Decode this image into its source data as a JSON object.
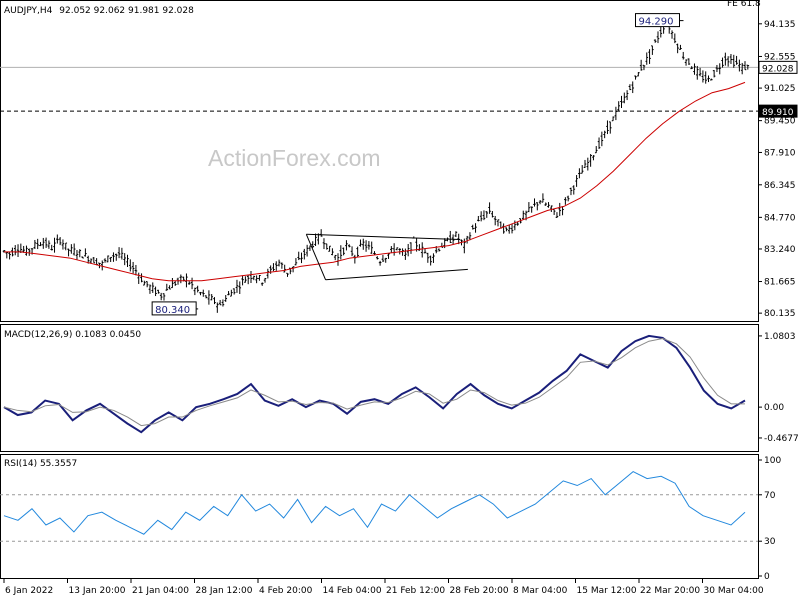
{
  "chart_data": [
    {
      "type": "candlestick",
      "symbol_label": "AUDJPY,H4",
      "ohlc_label": "92.052 92.062 91.981 92.028",
      "watermark": "ActionForex.com",
      "corner_label": "FE 61.8",
      "ylim": [
        79.9,
        94.9
      ],
      "yticks": [
        "94.135",
        "92.555",
        "91.025",
        "89.450",
        "87.910",
        "86.345",
        "84.770",
        "83.240",
        "81.665",
        "80.135"
      ],
      "current_price": "92.028",
      "level_line": "89.910",
      "annotation_high": "94.290",
      "annotation_low": "80.340",
      "price_series": [
        83.2,
        83.0,
        83.3,
        83.1,
        83.4,
        83.6,
        83.3,
        83.7,
        83.2,
        83.1,
        82.9,
        82.7,
        82.5,
        82.9,
        83.0,
        82.6,
        82.2,
        81.6,
        81.3,
        81.0,
        81.4,
        81.7,
        81.8,
        81.3,
        81.0,
        80.8,
        80.5,
        81.0,
        81.4,
        81.8,
        82.0,
        81.7,
        82.2,
        82.6,
        82.1,
        82.5,
        83.0,
        83.5,
        83.9,
        83.2,
        82.8,
        83.4,
        82.9,
        83.5,
        83.2,
        82.7,
        83.0,
        83.3,
        82.9,
        83.6,
        83.2,
        82.8,
        83.3,
        83.6,
        83.9,
        83.4,
        84.2,
        84.7,
        85.1,
        84.5,
        84.1,
        84.4,
        84.8,
        85.2,
        85.6,
        85.3,
        84.9,
        85.5,
        86.3,
        87.0,
        87.6,
        88.3,
        89.0,
        89.8,
        90.5,
        91.2,
        92.0,
        92.6,
        93.5,
        94.29,
        93.4,
        92.6,
        92.1,
        91.6,
        91.4,
        91.9,
        92.5,
        92.3,
        92.03
      ],
      "ma_series": [
        83.1,
        83.1,
        83.0,
        82.9,
        82.8,
        82.6,
        82.4,
        82.2,
        82.0,
        81.8,
        81.7,
        81.7,
        81.7,
        81.8,
        81.9,
        82.0,
        82.1,
        82.2,
        82.4,
        82.5,
        82.6,
        82.8,
        82.9,
        83.0,
        83.1,
        83.2,
        83.3,
        83.4,
        83.6,
        83.9,
        84.2,
        84.5,
        84.8,
        85.1,
        85.3,
        85.7,
        86.3,
        87.0,
        87.8,
        88.6,
        89.3,
        89.9,
        90.4,
        90.8,
        91.0,
        91.3
      ]
    },
    {
      "type": "line",
      "label": "MACD(12,26,9) 0.1083 0.0450",
      "ylim": [
        -0.62,
        1.17
      ],
      "yticks": [
        "1.0803",
        "0.00",
        "-0.4677"
      ],
      "series": [
        {
          "values": [
            0.0,
            -0.12,
            -0.08,
            0.1,
            0.05,
            -0.2,
            -0.05,
            0.05,
            -0.1,
            -0.25,
            -0.38,
            -0.2,
            -0.08,
            -0.2,
            0.0,
            0.05,
            0.12,
            0.2,
            0.35,
            0.1,
            0.02,
            0.12,
            0.0,
            0.1,
            0.05,
            -0.1,
            0.08,
            0.12,
            0.05,
            0.2,
            0.3,
            0.15,
            -0.02,
            0.2,
            0.35,
            0.18,
            0.05,
            -0.02,
            0.1,
            0.22,
            0.4,
            0.55,
            0.8,
            0.7,
            0.6,
            0.85,
            1.0,
            1.08,
            1.05,
            0.9,
            0.6,
            0.25,
            0.05,
            -0.02,
            0.1
          ]
        },
        {
          "values": [
            0.0,
            -0.05,
            -0.07,
            0.02,
            0.04,
            -0.08,
            -0.07,
            0.0,
            -0.05,
            -0.15,
            -0.28,
            -0.25,
            -0.15,
            -0.15,
            -0.05,
            0.02,
            0.08,
            0.14,
            0.26,
            0.18,
            0.08,
            0.09,
            0.04,
            0.07,
            0.06,
            -0.03,
            0.03,
            0.08,
            0.07,
            0.14,
            0.24,
            0.2,
            0.06,
            0.12,
            0.26,
            0.22,
            0.1,
            0.03,
            0.06,
            0.15,
            0.3,
            0.45,
            0.68,
            0.7,
            0.64,
            0.75,
            0.9,
            1.0,
            1.04,
            0.96,
            0.76,
            0.44,
            0.18,
            0.05,
            0.05
          ]
        }
      ]
    },
    {
      "type": "line",
      "label": "RSI(14) 55.3557",
      "ylim": [
        0,
        100
      ],
      "yticks": [
        "100",
        "70",
        "30",
        "0"
      ],
      "levels": [
        70,
        30
      ],
      "series": [
        {
          "values": [
            52,
            48,
            58,
            44,
            50,
            38,
            52,
            55,
            48,
            42,
            36,
            48,
            40,
            55,
            48,
            60,
            52,
            70,
            56,
            62,
            50,
            66,
            46,
            60,
            52,
            58,
            42,
            62,
            56,
            70,
            60,
            50,
            58,
            64,
            70,
            62,
            50,
            56,
            62,
            72,
            82,
            78,
            84,
            70,
            80,
            90,
            84,
            86,
            80,
            60,
            52,
            48,
            44,
            55
          ]
        }
      ]
    }
  ],
  "x_axis": {
    "labels": [
      "6 Jan 2022",
      "13 Jan 20:00",
      "21 Jan 04:00",
      "28 Jan 12:00",
      "4 Feb 20:00",
      "14 Feb 04:00",
      "21 Feb 12:00",
      "28 Feb 20:00",
      "8 Mar 04:00",
      "15 Mar 12:00",
      "22 Mar 20:00",
      "30 Mar 04:00"
    ]
  },
  "colors": {
    "candle": "#000000",
    "ma": "#cc0000",
    "macd": "#1a1f7a",
    "signal": "#8a8a8a",
    "rsi": "#2288dd",
    "triangle": "#000000"
  }
}
